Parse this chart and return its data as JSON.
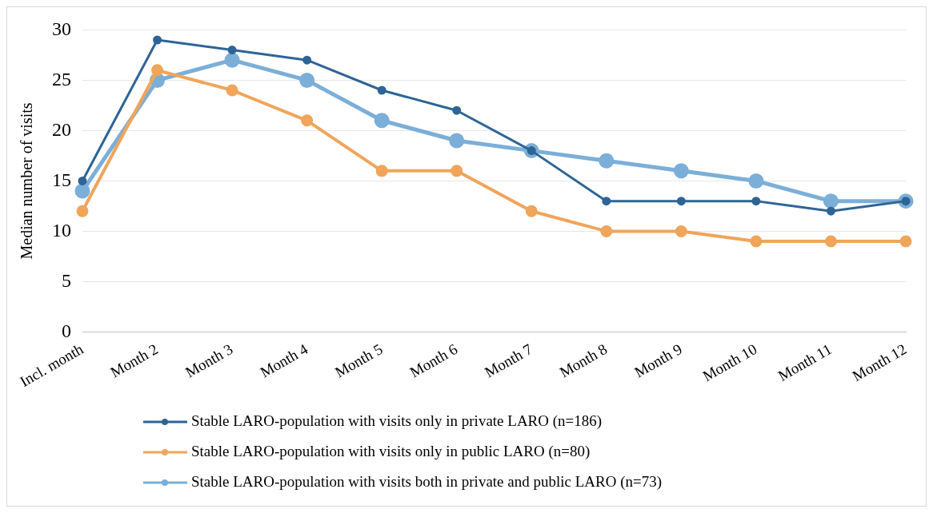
{
  "chart_data": {
    "type": "line",
    "ylabel": "Median number of visits",
    "categories": [
      "Incl. month",
      "Month 2",
      "Month 3",
      "Month 4",
      "Month 5",
      "Month 6",
      "Month 7",
      "Month 8",
      "Month 9",
      "Month 10",
      "Month 11",
      "Month 12"
    ],
    "series": [
      {
        "name": "Stable LARO-population with visits only in private LARO (n=186)",
        "color": "#2e6596",
        "values": [
          15,
          29,
          28,
          27,
          24,
          22,
          18,
          13,
          13,
          13,
          12,
          13
        ]
      },
      {
        "name": "Stable LARO-population with visits only in public LARO (n=80)",
        "color": "#f0a55a",
        "values": [
          12,
          26,
          24,
          21,
          16,
          16,
          12,
          10,
          10,
          9,
          9,
          9
        ]
      },
      {
        "name": "Stable LARO-population with visits both in private and public LARO (n=73)",
        "color": "#7bafd8",
        "values": [
          14,
          25,
          27,
          25,
          21,
          19,
          18,
          17,
          16,
          15,
          13,
          13
        ]
      }
    ],
    "ylim": [
      0,
      30
    ],
    "yticks": [
      0,
      5,
      10,
      15,
      20,
      25,
      30
    ],
    "grid": "y",
    "legend": "bottom",
    "marker": "circle",
    "line_style": "solid"
  }
}
